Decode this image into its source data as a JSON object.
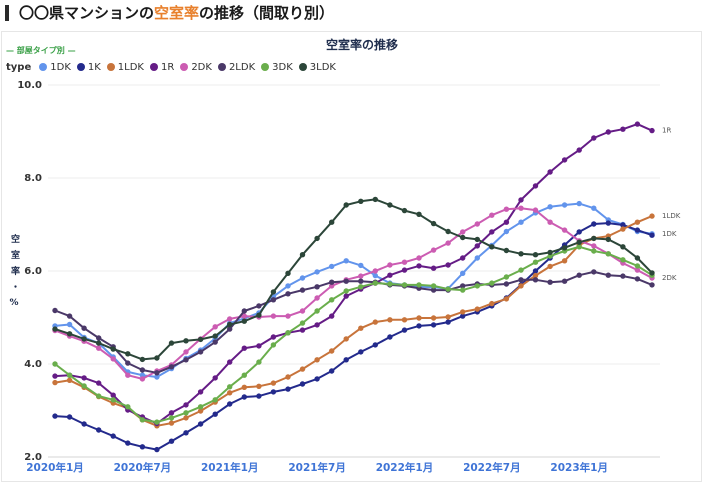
{
  "header": {
    "title_prefix": "〇〇県マンションの",
    "title_highlight": "空室率",
    "title_suffix": "の推移（間取り別）",
    "highlight_color": "#e8802c"
  },
  "chart_data": {
    "type": "line",
    "title": "空室率の推移",
    "subtitle": "— 部屋タイプ別 —",
    "legend_title": "type",
    "legend_position": "top-left",
    "ylabel": "空室率・%",
    "ylim": [
      2.0,
      10.0
    ],
    "yticks": [
      "10.0",
      "8.0",
      "6.0",
      "4.0",
      "2.0"
    ],
    "grid": true,
    "xticks": [
      "2020年1月",
      "2020年7月",
      "2021年1月",
      "2021年7月",
      "2022年1月",
      "2022年7月",
      "2023年1月"
    ],
    "x": [
      "2020年1月",
      "2020年2月",
      "2020年3月",
      "2020年4月",
      "2020年5月",
      "2020年6月",
      "2020年7月",
      "2020年8月",
      "2020年9月",
      "2020年10月",
      "2020年11月",
      "2020年12月",
      "2021年1月",
      "2021年2月",
      "2021年3月",
      "2021年4月",
      "2021年5月",
      "2021年6月",
      "2021年7月",
      "2021年8月",
      "2021年9月",
      "2021年10月",
      "2021年11月",
      "2021年12月",
      "2022年1月",
      "2022年2月",
      "2022年3月",
      "2022年4月",
      "2022年5月",
      "2022年6月",
      "2022年7月",
      "2022年8月",
      "2022年9月",
      "2022年10月",
      "2022年11月",
      "2022年12月",
      "2023年1月",
      "2023年2月",
      "2023年3月",
      "2023年4月",
      "2023年5月",
      "2023年6月"
    ],
    "series": [
      {
        "name": "1DK",
        "color": "#6294ec",
        "values": [
          4.82,
          4.85,
          4.57,
          4.45,
          4.15,
          3.83,
          3.76,
          3.72,
          3.9,
          4.12,
          4.3,
          4.55,
          4.88,
          4.98,
          5.1,
          5.45,
          5.68,
          5.85,
          5.98,
          6.1,
          6.22,
          6.12,
          5.9,
          5.74,
          5.7,
          5.66,
          5.65,
          5.62,
          5.95,
          6.28,
          6.55,
          6.85,
          7.05,
          7.25,
          7.38,
          7.42,
          7.45,
          7.35,
          7.1,
          7.0,
          6.85,
          6.8
        ]
      },
      {
        "name": "1K",
        "color": "#232a8c",
        "values": [
          2.88,
          2.86,
          2.71,
          2.58,
          2.45,
          2.3,
          2.22,
          2.16,
          2.34,
          2.52,
          2.71,
          2.92,
          3.14,
          3.29,
          3.31,
          3.4,
          3.46,
          3.57,
          3.68,
          3.85,
          4.09,
          4.26,
          4.41,
          4.58,
          4.73,
          4.82,
          4.84,
          4.9,
          5.03,
          5.12,
          5.25,
          5.42,
          5.7,
          6.0,
          6.28,
          6.56,
          6.84,
          7.01,
          7.03,
          6.99,
          6.88,
          6.77
        ]
      },
      {
        "name": "1LDK",
        "color": "#c8743b",
        "values": [
          3.6,
          3.65,
          3.5,
          3.3,
          3.16,
          3.05,
          2.8,
          2.67,
          2.73,
          2.84,
          2.99,
          3.18,
          3.38,
          3.5,
          3.52,
          3.59,
          3.72,
          3.89,
          4.09,
          4.28,
          4.54,
          4.77,
          4.9,
          4.95,
          4.95,
          4.99,
          4.99,
          5.01,
          5.12,
          5.18,
          5.3,
          5.4,
          5.68,
          5.9,
          6.1,
          6.22,
          6.56,
          6.7,
          6.75,
          6.9,
          7.05,
          7.18
        ]
      },
      {
        "name": "1R",
        "color": "#651c86",
        "values": [
          3.74,
          3.76,
          3.7,
          3.59,
          3.33,
          3.01,
          2.86,
          2.72,
          2.95,
          3.12,
          3.4,
          3.7,
          4.04,
          4.34,
          4.39,
          4.58,
          4.67,
          4.73,
          4.84,
          5.03,
          5.46,
          5.61,
          5.74,
          5.91,
          6.02,
          6.11,
          6.06,
          6.13,
          6.28,
          6.54,
          6.84,
          7.05,
          7.53,
          7.83,
          8.13,
          8.39,
          8.6,
          8.86,
          8.99,
          9.05,
          9.16,
          9.02
        ]
      },
      {
        "name": "2DK",
        "color": "#cc5cb2",
        "values": [
          4.72,
          4.6,
          4.49,
          4.34,
          4.11,
          3.76,
          3.68,
          3.85,
          3.98,
          4.26,
          4.54,
          4.8,
          4.97,
          5.03,
          5.01,
          5.03,
          5.03,
          5.14,
          5.42,
          5.68,
          5.81,
          5.89,
          6.0,
          6.13,
          6.19,
          6.28,
          6.45,
          6.6,
          6.84,
          7.01,
          7.2,
          7.33,
          7.35,
          7.31,
          7.05,
          6.88,
          6.65,
          6.54,
          6.37,
          6.17,
          6.02,
          5.85
        ]
      },
      {
        "name": "2LDK",
        "color": "#4a3868",
        "values": [
          5.15,
          5.03,
          4.77,
          4.56,
          4.37,
          4.02,
          3.87,
          3.81,
          3.94,
          4.09,
          4.26,
          4.47,
          4.75,
          5.14,
          5.25,
          5.38,
          5.51,
          5.59,
          5.66,
          5.76,
          5.78,
          5.78,
          5.76,
          5.7,
          5.68,
          5.63,
          5.59,
          5.59,
          5.68,
          5.72,
          5.7,
          5.72,
          5.81,
          5.81,
          5.76,
          5.78,
          5.91,
          5.98,
          5.91,
          5.89,
          5.83,
          5.7
        ]
      },
      {
        "name": "3DK",
        "color": "#6aae4c",
        "values": [
          4.0,
          3.76,
          3.53,
          3.31,
          3.23,
          3.08,
          2.8,
          2.75,
          2.84,
          2.95,
          3.08,
          3.23,
          3.51,
          3.76,
          4.04,
          4.41,
          4.67,
          4.88,
          5.14,
          5.38,
          5.57,
          5.66,
          5.74,
          5.72,
          5.7,
          5.7,
          5.68,
          5.61,
          5.59,
          5.68,
          5.74,
          5.87,
          6.02,
          6.19,
          6.32,
          6.43,
          6.52,
          6.43,
          6.37,
          6.24,
          6.11,
          5.91
        ]
      },
      {
        "name": "3LDK",
        "color": "#2c4639",
        "values": [
          4.75,
          4.65,
          4.54,
          4.45,
          4.32,
          4.22,
          4.1,
          4.13,
          4.45,
          4.5,
          4.53,
          4.6,
          4.85,
          4.92,
          5.05,
          5.55,
          5.95,
          6.35,
          6.7,
          7.05,
          7.42,
          7.5,
          7.54,
          7.42,
          7.3,
          7.22,
          7.02,
          6.85,
          6.72,
          6.68,
          6.52,
          6.44,
          6.37,
          6.35,
          6.4,
          6.5,
          6.62,
          6.7,
          6.68,
          6.52,
          6.28,
          5.96
        ]
      }
    ],
    "end_labels": [
      "1R",
      "1LDK",
      "1DK",
      "2DK"
    ]
  }
}
